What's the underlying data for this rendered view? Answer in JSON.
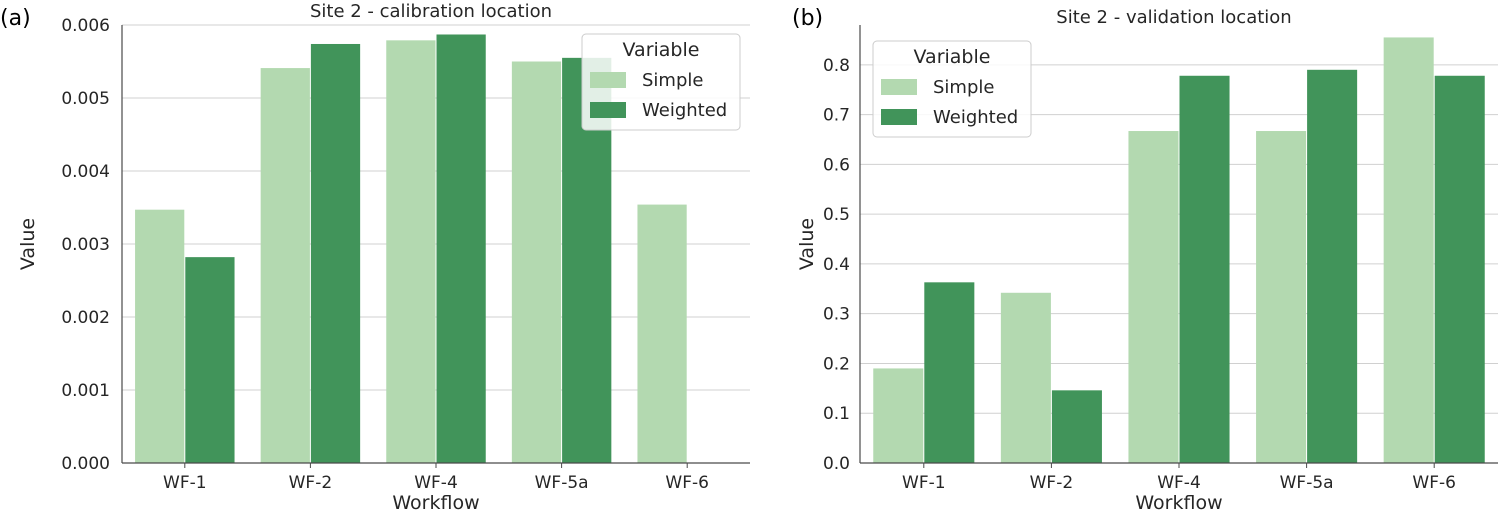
{
  "panel_labels": [
    "(a)",
    "(b)"
  ],
  "colors": {
    "simple": "#b3d9b0",
    "weighted": "#41945a"
  },
  "chart_data": [
    {
      "type": "bar",
      "title": "Site 2 - calibration location",
      "xlabel": "Workflow",
      "ylabel": "Value",
      "categories": [
        "WF-1",
        "WF-2",
        "WF-4",
        "WF-5a",
        "WF-6"
      ],
      "ylim": [
        0,
        0.006
      ],
      "yticks": [
        0.0,
        0.001,
        0.002,
        0.003,
        0.004,
        0.005,
        0.006
      ],
      "ytick_labels": [
        "0.000",
        "0.001",
        "0.002",
        "0.003",
        "0.004",
        "0.005",
        "0.006"
      ],
      "series": [
        {
          "name": "Simple",
          "values": [
            0.00347,
            0.00541,
            0.00579,
            0.0055,
            0.00354
          ]
        },
        {
          "name": "Weighted",
          "values": [
            0.00282,
            0.00574,
            0.00587,
            0.00555,
            null
          ]
        }
      ],
      "legend": {
        "title": "Variable",
        "placement": "top-right"
      },
      "grid": true
    },
    {
      "type": "bar",
      "title": "Site 2 - validation location",
      "xlabel": "Workflow",
      "ylabel": "Value",
      "categories": [
        "WF-1",
        "WF-2",
        "WF-4",
        "WF-5a",
        "WF-6"
      ],
      "ylim": [
        0,
        0.88
      ],
      "yticks": [
        0.0,
        0.1,
        0.2,
        0.3,
        0.4,
        0.5,
        0.6,
        0.7,
        0.8
      ],
      "ytick_labels": [
        "0.0",
        "0.1",
        "0.2",
        "0.3",
        "0.4",
        "0.5",
        "0.6",
        "0.7",
        "0.8"
      ],
      "series": [
        {
          "name": "Simple",
          "values": [
            0.19,
            0.342,
            0.667,
            0.667,
            0.855
          ]
        },
        {
          "name": "Weighted",
          "values": [
            0.363,
            0.146,
            0.778,
            0.79,
            0.778
          ]
        }
      ],
      "legend": {
        "title": "Variable",
        "placement": "top-left"
      },
      "grid": true
    }
  ]
}
